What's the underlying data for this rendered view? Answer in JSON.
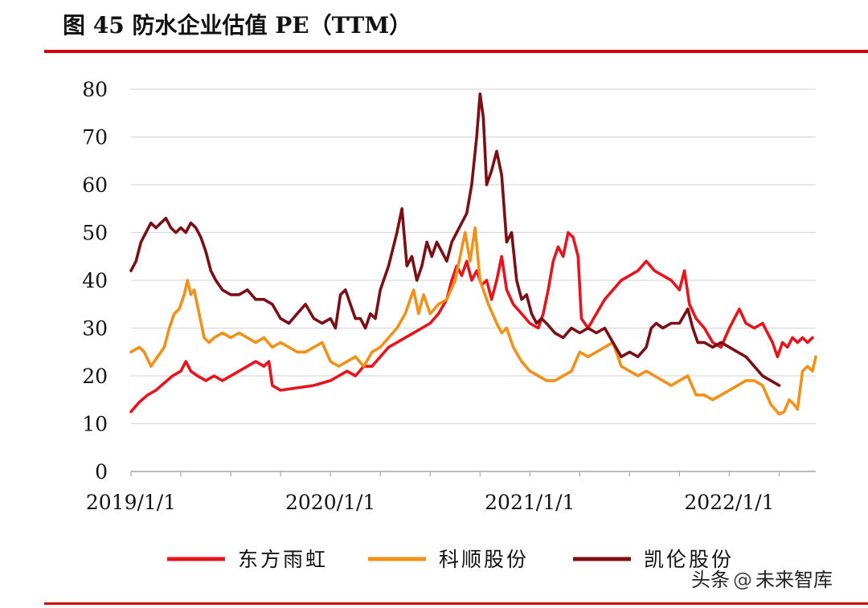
{
  "figure": {
    "title": "图  45  防水企业估值 PE（TTM）"
  },
  "colors": {
    "accent_rule": "#d40000",
    "gridline": "#d9d9d9",
    "axis": "#a6a6a6"
  },
  "watermark": {
    "platform": "头条",
    "at": "@",
    "account": "未来智库"
  },
  "chart_data": {
    "type": "line",
    "title": "",
    "xlabel": "",
    "ylabel": "",
    "ylim": [
      0,
      80
    ],
    "yticks": [
      0,
      10,
      20,
      30,
      40,
      50,
      60,
      70,
      80
    ],
    "xlim": [
      0,
      41.2
    ],
    "x_unit": "months since 2019-01",
    "xticks": [
      {
        "x": 0,
        "label": "2019/1/1"
      },
      {
        "x": 12,
        "label": "2020/1/1"
      },
      {
        "x": 24,
        "label": "2021/1/1"
      },
      {
        "x": 36,
        "label": "2022/1/1"
      }
    ],
    "grid": true,
    "legend": "bottom",
    "series": [
      {
        "name": "东方雨虹",
        "color": "#e8141c",
        "points": [
          [
            0,
            12.5
          ],
          [
            0.5,
            14.5
          ],
          [
            1,
            16
          ],
          [
            1.5,
            17
          ],
          [
            2,
            18.5
          ],
          [
            2.5,
            20
          ],
          [
            3,
            21
          ],
          [
            3.3,
            23
          ],
          [
            3.6,
            21
          ],
          [
            4,
            20
          ],
          [
            4.5,
            19
          ],
          [
            5,
            20
          ],
          [
            5.5,
            19
          ],
          [
            6,
            20
          ],
          [
            6.5,
            21
          ],
          [
            7,
            22
          ],
          [
            7.5,
            23
          ],
          [
            8,
            22
          ],
          [
            8.3,
            23
          ],
          [
            8.5,
            18
          ],
          [
            9,
            17
          ],
          [
            10,
            17.5
          ],
          [
            11,
            18
          ],
          [
            11.5,
            18.5
          ],
          [
            12,
            19
          ],
          [
            12.5,
            20
          ],
          [
            13,
            21
          ],
          [
            13.5,
            20
          ],
          [
            14,
            22
          ],
          [
            14.5,
            22
          ],
          [
            15,
            24
          ],
          [
            15.5,
            26
          ],
          [
            16,
            27
          ],
          [
            16.5,
            28
          ],
          [
            17,
            29
          ],
          [
            17.5,
            30
          ],
          [
            18,
            31
          ],
          [
            18.5,
            33
          ],
          [
            19,
            36
          ],
          [
            19.3,
            40
          ],
          [
            19.6,
            43
          ],
          [
            19.9,
            41
          ],
          [
            20.2,
            44
          ],
          [
            20.5,
            40
          ],
          [
            20.8,
            42
          ],
          [
            21.1,
            39
          ],
          [
            21.4,
            40
          ],
          [
            21.7,
            36
          ],
          [
            22,
            40
          ],
          [
            22.3,
            45
          ],
          [
            22.6,
            38
          ],
          [
            23,
            35
          ],
          [
            23.5,
            33
          ],
          [
            24,
            31
          ],
          [
            24.5,
            30
          ],
          [
            24.8,
            33
          ],
          [
            25.1,
            38
          ],
          [
            25.4,
            44
          ],
          [
            25.7,
            47
          ],
          [
            26,
            45
          ],
          [
            26.3,
            50
          ],
          [
            26.6,
            49
          ],
          [
            26.9,
            45
          ],
          [
            27.1,
            32
          ],
          [
            27.5,
            30
          ],
          [
            28,
            33
          ],
          [
            28.5,
            36
          ],
          [
            29,
            38
          ],
          [
            29.5,
            40
          ],
          [
            30,
            41
          ],
          [
            30.5,
            42
          ],
          [
            31,
            44
          ],
          [
            31.5,
            42
          ],
          [
            32,
            41
          ],
          [
            32.5,
            40
          ],
          [
            33,
            38
          ],
          [
            33.3,
            42
          ],
          [
            33.6,
            35
          ],
          [
            34,
            32
          ],
          [
            34.5,
            30
          ],
          [
            35,
            27
          ],
          [
            35.5,
            26
          ],
          [
            36,
            30
          ],
          [
            36.3,
            32
          ],
          [
            36.6,
            34
          ],
          [
            37,
            31
          ],
          [
            37.5,
            30
          ],
          [
            38,
            31
          ],
          [
            38.3,
            29
          ],
          [
            38.6,
            27
          ],
          [
            38.9,
            24
          ],
          [
            39.2,
            27
          ],
          [
            39.5,
            26
          ],
          [
            39.8,
            28
          ],
          [
            40.1,
            27
          ],
          [
            40.4,
            28
          ],
          [
            40.7,
            27
          ],
          [
            41,
            28
          ]
        ]
      },
      {
        "name": "科顺股份",
        "color": "#f39018",
        "points": [
          [
            0,
            25
          ],
          [
            0.5,
            26
          ],
          [
            0.8,
            25
          ],
          [
            1.2,
            22
          ],
          [
            1.6,
            24
          ],
          [
            2,
            26
          ],
          [
            2.3,
            30
          ],
          [
            2.6,
            33
          ],
          [
            2.9,
            34
          ],
          [
            3.2,
            37
          ],
          [
            3.4,
            40
          ],
          [
            3.6,
            37
          ],
          [
            3.8,
            38
          ],
          [
            4.1,
            33
          ],
          [
            4.4,
            28
          ],
          [
            4.7,
            27
          ],
          [
            5,
            28
          ],
          [
            5.5,
            29
          ],
          [
            6,
            28
          ],
          [
            6.5,
            29
          ],
          [
            7,
            28
          ],
          [
            7.5,
            27
          ],
          [
            8,
            28
          ],
          [
            8.5,
            26
          ],
          [
            9,
            27
          ],
          [
            9.5,
            26
          ],
          [
            10,
            25
          ],
          [
            10.5,
            25
          ],
          [
            11,
            26
          ],
          [
            11.5,
            27
          ],
          [
            12,
            23
          ],
          [
            12.5,
            22
          ],
          [
            13,
            23
          ],
          [
            13.5,
            24
          ],
          [
            14,
            22
          ],
          [
            14.5,
            25
          ],
          [
            15,
            26
          ],
          [
            15.5,
            28
          ],
          [
            16,
            30
          ],
          [
            16.5,
            33
          ],
          [
            17,
            38
          ],
          [
            17.3,
            33
          ],
          [
            17.6,
            37
          ],
          [
            18,
            33
          ],
          [
            18.5,
            35
          ],
          [
            19,
            36
          ],
          [
            19.5,
            40
          ],
          [
            19.8,
            45
          ],
          [
            20.1,
            50
          ],
          [
            20.4,
            44
          ],
          [
            20.7,
            51
          ],
          [
            21,
            40
          ],
          [
            21.5,
            35
          ],
          [
            22,
            31
          ],
          [
            22.3,
            29
          ],
          [
            22.6,
            30
          ],
          [
            23,
            26
          ],
          [
            23.5,
            23
          ],
          [
            24,
            21
          ],
          [
            24.5,
            20
          ],
          [
            25,
            19
          ],
          [
            25.5,
            19
          ],
          [
            26,
            20
          ],
          [
            26.5,
            21
          ],
          [
            27,
            25
          ],
          [
            27.5,
            24
          ],
          [
            28,
            25
          ],
          [
            28.5,
            26
          ],
          [
            29,
            27
          ],
          [
            29.5,
            22
          ],
          [
            30,
            21
          ],
          [
            30.5,
            20
          ],
          [
            31,
            21
          ],
          [
            31.5,
            20
          ],
          [
            32,
            19
          ],
          [
            32.5,
            18
          ],
          [
            33,
            19
          ],
          [
            33.5,
            20
          ],
          [
            34,
            16
          ],
          [
            34.5,
            16
          ],
          [
            35,
            15
          ],
          [
            35.5,
            16
          ],
          [
            36,
            17
          ],
          [
            36.5,
            18
          ],
          [
            37,
            19
          ],
          [
            37.5,
            19
          ],
          [
            38,
            18
          ],
          [
            38.5,
            14
          ],
          [
            39,
            12
          ],
          [
            39.3,
            12.5
          ],
          [
            39.6,
            15
          ],
          [
            39.9,
            14
          ],
          [
            40.1,
            13
          ],
          [
            40.4,
            21
          ],
          [
            40.7,
            22
          ],
          [
            41,
            21
          ],
          [
            41.2,
            24
          ]
        ]
      },
      {
        "name": "凯伦股份",
        "color": "#7b0f14",
        "points": [
          [
            0,
            42
          ],
          [
            0.3,
            44
          ],
          [
            0.6,
            48
          ],
          [
            0.9,
            50
          ],
          [
            1.2,
            52
          ],
          [
            1.5,
            51
          ],
          [
            1.8,
            52
          ],
          [
            2.1,
            53
          ],
          [
            2.4,
            51
          ],
          [
            2.7,
            50
          ],
          [
            3,
            51
          ],
          [
            3.3,
            50
          ],
          [
            3.6,
            52
          ],
          [
            3.9,
            51
          ],
          [
            4.2,
            49
          ],
          [
            4.5,
            46
          ],
          [
            4.8,
            42
          ],
          [
            5.1,
            40
          ],
          [
            5.5,
            38
          ],
          [
            6,
            37
          ],
          [
            6.5,
            37
          ],
          [
            7,
            38
          ],
          [
            7.5,
            36
          ],
          [
            8,
            36
          ],
          [
            8.5,
            35
          ],
          [
            9,
            32
          ],
          [
            9.5,
            31
          ],
          [
            10,
            33
          ],
          [
            10.5,
            35
          ],
          [
            11,
            32
          ],
          [
            11.5,
            31
          ],
          [
            12,
            32
          ],
          [
            12.3,
            30
          ],
          [
            12.6,
            37
          ],
          [
            12.9,
            38
          ],
          [
            13.2,
            35
          ],
          [
            13.5,
            32
          ],
          [
            13.8,
            32
          ],
          [
            14.1,
            30
          ],
          [
            14.4,
            33
          ],
          [
            14.7,
            32
          ],
          [
            15,
            38
          ],
          [
            15.5,
            43
          ],
          [
            16,
            50
          ],
          [
            16.3,
            55
          ],
          [
            16.6,
            43
          ],
          [
            16.9,
            45
          ],
          [
            17.2,
            40
          ],
          [
            17.5,
            43
          ],
          [
            17.8,
            48
          ],
          [
            18.1,
            45
          ],
          [
            18.4,
            48
          ],
          [
            18.7,
            46
          ],
          [
            19,
            44
          ],
          [
            19.3,
            48
          ],
          [
            19.6,
            50
          ],
          [
            19.9,
            52
          ],
          [
            20.2,
            54
          ],
          [
            20.5,
            60
          ],
          [
            20.8,
            70
          ],
          [
            21,
            79
          ],
          [
            21.2,
            74
          ],
          [
            21.4,
            60
          ],
          [
            21.7,
            63
          ],
          [
            22,
            67
          ],
          [
            22.3,
            62
          ],
          [
            22.6,
            48
          ],
          [
            22.9,
            50
          ],
          [
            23.2,
            40
          ],
          [
            23.5,
            36
          ],
          [
            23.8,
            37
          ],
          [
            24.1,
            33
          ],
          [
            24.4,
            31
          ],
          [
            24.7,
            32
          ],
          [
            25,
            31
          ],
          [
            25.5,
            29
          ],
          [
            26,
            28
          ],
          [
            26.5,
            30
          ],
          [
            27,
            29
          ],
          [
            27.5,
            30
          ],
          [
            28,
            29
          ],
          [
            28.5,
            30
          ],
          [
            29,
            27
          ],
          [
            29.5,
            24
          ],
          [
            30,
            25
          ],
          [
            30.5,
            24
          ],
          [
            31,
            26
          ],
          [
            31.3,
            30
          ],
          [
            31.6,
            31
          ],
          [
            32,
            30
          ],
          [
            32.5,
            31
          ],
          [
            33,
            31
          ],
          [
            33.5,
            34
          ],
          [
            33.8,
            30
          ],
          [
            34.1,
            27
          ],
          [
            34.5,
            27
          ],
          [
            35,
            26
          ],
          [
            35.5,
            27
          ],
          [
            36,
            26
          ],
          [
            36.5,
            25
          ],
          [
            37,
            24
          ],
          [
            37.5,
            22
          ],
          [
            38,
            20
          ],
          [
            38.5,
            19
          ],
          [
            39,
            18
          ]
        ]
      }
    ]
  }
}
